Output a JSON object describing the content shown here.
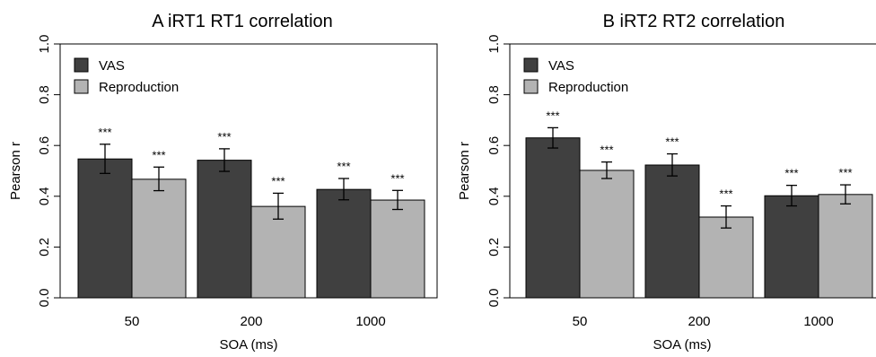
{
  "chart_data": [
    {
      "type": "bar",
      "title": "A  iRT1 RT1 correlation",
      "xlabel": "SOA (ms)",
      "ylabel": "Pearson r",
      "ylim": [
        0,
        1
      ],
      "yticks": [
        "0.0",
        "0.2",
        "0.4",
        "0.6",
        "0.8",
        "1.0"
      ],
      "categories": [
        "50",
        "200",
        "1000"
      ],
      "legend_position": "top-left",
      "grid": false,
      "series": [
        {
          "name": "VAS",
          "color": "#404040",
          "values": [
            0.547,
            0.542,
            0.427
          ],
          "error_low": [
            0.49,
            0.498,
            0.386
          ],
          "error_high": [
            0.605,
            0.587,
            0.47
          ],
          "annotations": [
            "***",
            "***",
            "***"
          ]
        },
        {
          "name": "Reproduction",
          "color": "#b3b3b3",
          "values": [
            0.467,
            0.36,
            0.385
          ],
          "error_low": [
            0.422,
            0.31,
            0.348
          ],
          "error_high": [
            0.515,
            0.412,
            0.423
          ],
          "annotations": [
            "***",
            "***",
            "***"
          ]
        }
      ]
    },
    {
      "type": "bar",
      "title": "B  iRT2 RT2 correlation",
      "xlabel": "SOA (ms)",
      "ylabel": "Pearson r",
      "ylim": [
        0,
        1
      ],
      "yticks": [
        "0.0",
        "0.2",
        "0.4",
        "0.6",
        "0.8",
        "1.0"
      ],
      "categories": [
        "50",
        "200",
        "1000"
      ],
      "legend_position": "top-left",
      "grid": false,
      "series": [
        {
          "name": "VAS",
          "color": "#404040",
          "values": [
            0.63,
            0.523,
            0.402
          ],
          "error_low": [
            0.59,
            0.48,
            0.362
          ],
          "error_high": [
            0.67,
            0.567,
            0.443
          ],
          "annotations": [
            "***",
            "***",
            "***"
          ]
        },
        {
          "name": "Reproduction",
          "color": "#b3b3b3",
          "values": [
            0.502,
            0.318,
            0.407
          ],
          "error_low": [
            0.47,
            0.275,
            0.37
          ],
          "error_high": [
            0.535,
            0.362,
            0.445
          ],
          "annotations": [
            "***",
            "***",
            "***"
          ]
        }
      ]
    }
  ]
}
